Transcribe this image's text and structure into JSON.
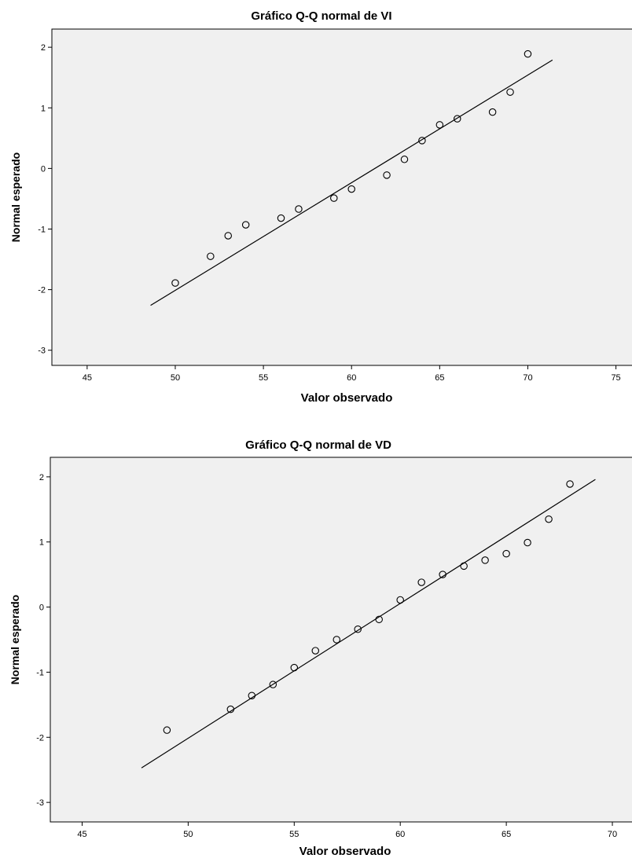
{
  "chart_data": [
    {
      "type": "scatter",
      "title": "Gráfico Q-Q normal de VI",
      "xlabel": "Valor observado",
      "ylabel": "Normal esperado",
      "xlim": [
        43,
        76
      ],
      "ylim": [
        -3.25,
        2.3
      ],
      "xticks": [
        45,
        50,
        55,
        60,
        65,
        70,
        75
      ],
      "yticks": [
        -3,
        -2,
        -1,
        0,
        1,
        2
      ],
      "grid": false,
      "background": "#f0f0f0",
      "points": [
        {
          "x": 50,
          "y": -1.89
        },
        {
          "x": 52,
          "y": -1.45
        },
        {
          "x": 53,
          "y": -1.11
        },
        {
          "x": 54,
          "y": -0.93
        },
        {
          "x": 56,
          "y": -0.82
        },
        {
          "x": 57,
          "y": -0.67
        },
        {
          "x": 59,
          "y": -0.49
        },
        {
          "x": 60,
          "y": -0.34
        },
        {
          "x": 62,
          "y": -0.11
        },
        {
          "x": 63,
          "y": 0.15
        },
        {
          "x": 64,
          "y": 0.46
        },
        {
          "x": 65,
          "y": 0.72
        },
        {
          "x": 66,
          "y": 0.82
        },
        {
          "x": 68,
          "y": 0.93
        },
        {
          "x": 69,
          "y": 1.26
        },
        {
          "x": 70,
          "y": 1.89
        }
      ],
      "reference_line": {
        "x1": 48.6,
        "y1": -2.26,
        "x2": 71.4,
        "y2": 1.79
      }
    },
    {
      "type": "scatter",
      "title": "Gráfico Q-Q normal de VD",
      "xlabel": "Valor observado",
      "ylabel": "Normal esperado",
      "xlim": [
        43.5,
        71
      ],
      "ylim": [
        -3.3,
        2.3
      ],
      "xticks": [
        45,
        50,
        55,
        60,
        65,
        70
      ],
      "yticks": [
        -3,
        -2,
        -1,
        0,
        1,
        2
      ],
      "grid": false,
      "background": "#f0f0f0",
      "points": [
        {
          "x": 49,
          "y": -1.89
        },
        {
          "x": 52,
          "y": -1.57
        },
        {
          "x": 53,
          "y": -1.36
        },
        {
          "x": 54,
          "y": -1.19
        },
        {
          "x": 55,
          "y": -0.93
        },
        {
          "x": 56,
          "y": -0.67
        },
        {
          "x": 57,
          "y": -0.5
        },
        {
          "x": 58,
          "y": -0.34
        },
        {
          "x": 59,
          "y": -0.19
        },
        {
          "x": 60,
          "y": 0.11
        },
        {
          "x": 61,
          "y": 0.38
        },
        {
          "x": 62,
          "y": 0.5
        },
        {
          "x": 63,
          "y": 0.63
        },
        {
          "x": 64,
          "y": 0.72
        },
        {
          "x": 65,
          "y": 0.82
        },
        {
          "x": 66,
          "y": 0.99
        },
        {
          "x": 67,
          "y": 1.35
        },
        {
          "x": 68,
          "y": 1.89
        }
      ],
      "reference_line": {
        "x1": 47.8,
        "y1": -2.47,
        "x2": 69.2,
        "y2": 1.96
      }
    }
  ]
}
